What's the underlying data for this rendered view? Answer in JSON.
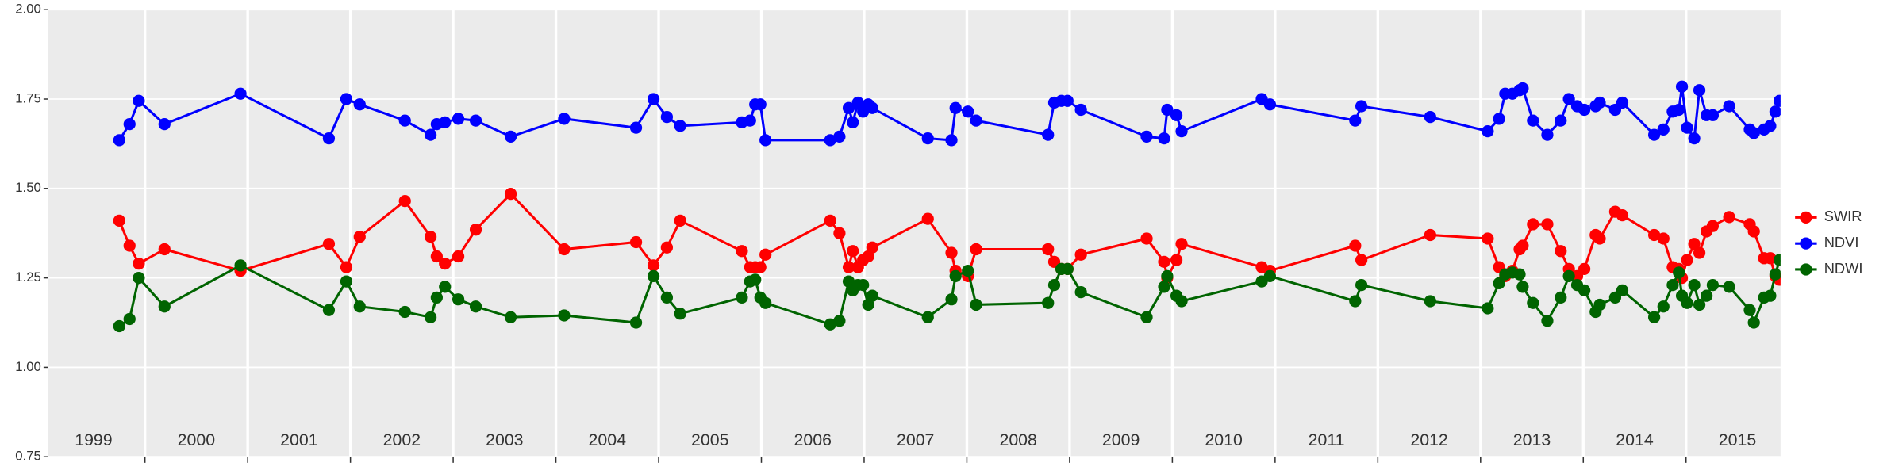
{
  "chart_data": {
    "type": "line",
    "x": [
      1999.75,
      1999.85,
      1999.94,
      2000.19,
      2000.93,
      2001.79,
      2001.96,
      2002.09,
      2002.53,
      2002.78,
      2002.84,
      2002.92,
      2003.05,
      2003.22,
      2003.56,
      2004.08,
      2004.78,
      2004.95,
      2005.08,
      2005.21,
      2005.81,
      2005.89,
      2005.94,
      2005.99,
      2006.04,
      2006.67,
      2006.76,
      2006.85,
      2006.89,
      2006.94,
      2006.99,
      2007.04,
      2007.08,
      2007.62,
      2007.85,
      2007.89,
      2008.01,
      2008.09,
      2008.79,
      2008.85,
      2008.92,
      2008.98,
      2009.11,
      2009.75,
      2009.92,
      2009.95,
      2010.04,
      2010.09,
      2010.87,
      2010.95,
      2011.78,
      2011.84,
      2012.51,
      2013.07,
      2013.18,
      2013.24,
      2013.31,
      2013.38,
      2013.41,
      2013.51,
      2013.65,
      2013.78,
      2013.86,
      2013.94,
      2014.01,
      2014.12,
      2014.16,
      2014.31,
      2014.38,
      2014.69,
      2014.78,
      2014.87,
      2014.93,
      2014.96,
      2015.01,
      2015.08,
      2015.13,
      2015.2,
      2015.26,
      2015.42,
      2015.62,
      2015.66,
      2015.76,
      2015.82,
      2015.87,
      2015.91
    ],
    "series": [
      {
        "name": "SWIR",
        "color": "#ff0000",
        "values": [
          1.41,
          1.34,
          1.29,
          1.33,
          1.27,
          1.345,
          1.28,
          1.365,
          1.465,
          1.365,
          1.31,
          1.29,
          1.31,
          1.385,
          1.485,
          1.33,
          1.35,
          1.285,
          1.335,
          1.41,
          1.325,
          1.28,
          1.28,
          1.28,
          1.315,
          1.41,
          1.375,
          1.28,
          1.325,
          1.28,
          1.3,
          1.31,
          1.335,
          1.415,
          1.32,
          1.27,
          1.255,
          1.33,
          1.33,
          1.295,
          1.275,
          1.275,
          1.315,
          1.36,
          1.295,
          1.25,
          1.3,
          1.345,
          1.28,
          1.27,
          1.34,
          1.3,
          1.37,
          1.36,
          1.28,
          1.255,
          1.27,
          1.33,
          1.34,
          1.4,
          1.4,
          1.325,
          1.275,
          1.255,
          1.275,
          1.37,
          1.36,
          1.435,
          1.425,
          1.37,
          1.36,
          1.28,
          1.275,
          1.25,
          1.3,
          1.345,
          1.32,
          1.38,
          1.395,
          1.42,
          1.4,
          1.38,
          1.305,
          1.305,
          1.255,
          1.245
        ]
      },
      {
        "name": "NDVI",
        "color": "#0000ff",
        "values": [
          1.635,
          1.68,
          1.745,
          1.68,
          1.765,
          1.64,
          1.75,
          1.735,
          1.69,
          1.65,
          1.68,
          1.685,
          1.695,
          1.69,
          1.645,
          1.695,
          1.67,
          1.75,
          1.7,
          1.675,
          1.685,
          1.69,
          1.735,
          1.735,
          1.635,
          1.635,
          1.645,
          1.725,
          1.685,
          1.74,
          1.715,
          1.735,
          1.725,
          1.64,
          1.635,
          1.725,
          1.715,
          1.69,
          1.65,
          1.74,
          1.745,
          1.745,
          1.72,
          1.645,
          1.64,
          1.72,
          1.705,
          1.66,
          1.75,
          1.735,
          1.69,
          1.73,
          1.7,
          1.66,
          1.695,
          1.765,
          1.765,
          1.775,
          1.78,
          1.69,
          1.65,
          1.69,
          1.75,
          1.73,
          1.72,
          1.73,
          1.74,
          1.72,
          1.74,
          1.65,
          1.665,
          1.715,
          1.72,
          1.785,
          1.67,
          1.64,
          1.775,
          1.705,
          1.705,
          1.73,
          1.665,
          1.655,
          1.665,
          1.675,
          1.715,
          1.745
        ]
      },
      {
        "name": "NDWI",
        "color": "#006400",
        "values": [
          1.115,
          1.135,
          1.25,
          1.17,
          1.285,
          1.16,
          1.24,
          1.17,
          1.155,
          1.14,
          1.195,
          1.225,
          1.19,
          1.17,
          1.14,
          1.145,
          1.125,
          1.255,
          1.195,
          1.15,
          1.195,
          1.24,
          1.245,
          1.195,
          1.18,
          1.12,
          1.13,
          1.24,
          1.215,
          1.23,
          1.23,
          1.175,
          1.2,
          1.14,
          1.19,
          1.255,
          1.27,
          1.175,
          1.18,
          1.23,
          1.275,
          1.275,
          1.21,
          1.14,
          1.225,
          1.255,
          1.2,
          1.185,
          1.24,
          1.255,
          1.185,
          1.23,
          1.185,
          1.165,
          1.235,
          1.26,
          1.265,
          1.26,
          1.225,
          1.18,
          1.13,
          1.195,
          1.255,
          1.23,
          1.215,
          1.155,
          1.175,
          1.195,
          1.215,
          1.14,
          1.17,
          1.23,
          1.265,
          1.2,
          1.18,
          1.23,
          1.175,
          1.2,
          1.23,
          1.225,
          1.16,
          1.125,
          1.195,
          1.2,
          1.26,
          1.3
        ]
      }
    ],
    "xlim": [
      1999.06,
      2015.92
    ],
    "xticks": [
      2000,
      2001,
      2002,
      2003,
      2004,
      2005,
      2006,
      2007,
      2008,
      2009,
      2010,
      2011,
      2012,
      2013,
      2014,
      2015
    ],
    "year_labels": [
      {
        "value": 1999.5,
        "label": "1999"
      },
      {
        "value": 2000.5,
        "label": "2000"
      },
      {
        "value": 2001.5,
        "label": "2001"
      },
      {
        "value": 2002.5,
        "label": "2002"
      },
      {
        "value": 2003.5,
        "label": "2003"
      },
      {
        "value": 2004.5,
        "label": "2004"
      },
      {
        "value": 2005.5,
        "label": "2005"
      },
      {
        "value": 2006.5,
        "label": "2006"
      },
      {
        "value": 2007.5,
        "label": "2007"
      },
      {
        "value": 2008.5,
        "label": "2008"
      },
      {
        "value": 2009.5,
        "label": "2009"
      },
      {
        "value": 2010.5,
        "label": "2010"
      },
      {
        "value": 2011.5,
        "label": "2011"
      },
      {
        "value": 2012.5,
        "label": "2012"
      },
      {
        "value": 2013.5,
        "label": "2013"
      },
      {
        "value": 2014.5,
        "label": "2014"
      },
      {
        "value": 2015.5,
        "label": "2015"
      }
    ],
    "ylim": [
      0.75,
      2.0
    ],
    "yticks": [
      {
        "value": 0.75,
        "label": "0.75"
      },
      {
        "value": 1.0,
        "label": "1.00"
      },
      {
        "value": 1.25,
        "label": "1.25"
      },
      {
        "value": 1.5,
        "label": "1.50"
      },
      {
        "value": 1.75,
        "label": "1.75"
      },
      {
        "value": 2.0,
        "label": "2.00"
      }
    ],
    "grid": true,
    "legend": "right"
  }
}
